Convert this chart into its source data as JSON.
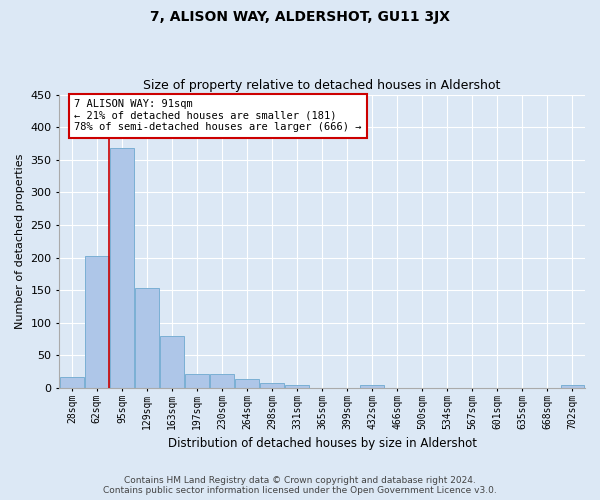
{
  "title": "7, ALISON WAY, ALDERSHOT, GU11 3JX",
  "subtitle": "Size of property relative to detached houses in Aldershot",
  "xlabel": "Distribution of detached houses by size in Aldershot",
  "ylabel": "Number of detached properties",
  "footer_line1": "Contains HM Land Registry data © Crown copyright and database right 2024.",
  "footer_line2": "Contains public sector information licensed under the Open Government Licence v3.0.",
  "categories": [
    "28sqm",
    "62sqm",
    "95sqm",
    "129sqm",
    "163sqm",
    "197sqm",
    "230sqm",
    "264sqm",
    "298sqm",
    "331sqm",
    "365sqm",
    "399sqm",
    "432sqm",
    "466sqm",
    "500sqm",
    "534sqm",
    "567sqm",
    "601sqm",
    "635sqm",
    "668sqm",
    "702sqm"
  ],
  "values": [
    16,
    203,
    368,
    153,
    79,
    22,
    21,
    13,
    7,
    5,
    0,
    0,
    4,
    0,
    0,
    0,
    0,
    0,
    0,
    0,
    4
  ],
  "bar_color": "#aec6e8",
  "bar_edge_color": "#7aafd4",
  "background_color": "#dce8f5",
  "grid_color": "#ffffff",
  "vline_color": "#cc0000",
  "vline_x_index": 1.5,
  "annotation_text": "7 ALISON WAY: 91sqm\n← 21% of detached houses are smaller (181)\n78% of semi-detached houses are larger (666) →",
  "annotation_box_color": "#ffffff",
  "annotation_box_edge": "#cc0000",
  "ylim": [
    0,
    450
  ],
  "yticks": [
    0,
    50,
    100,
    150,
    200,
    250,
    300,
    350,
    400,
    450
  ]
}
